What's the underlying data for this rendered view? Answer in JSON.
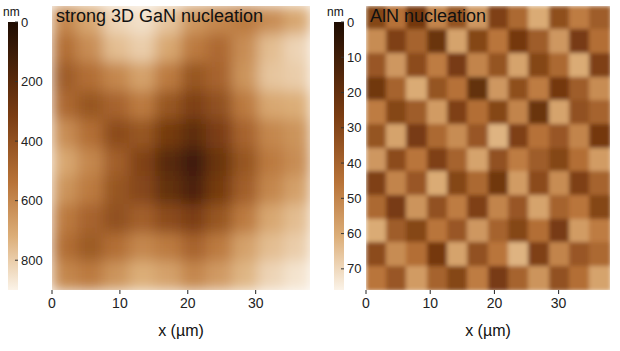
{
  "chart_data": [
    {
      "type": "heatmap",
      "title": "strong 3D GaN nucleation",
      "x_label": "x (µm)",
      "xlim": [
        0,
        38
      ],
      "xticks": [
        0,
        10,
        20,
        30
      ],
      "tick_labels": "x",
      "colorbar_label": "nm",
      "colorbar_range": [
        0,
        900
      ],
      "colorbar_ticks": [
        0,
        200,
        400,
        600,
        800
      ],
      "cells": [
        [
          600,
          700,
          820,
          850,
          780,
          650,
          600,
          560,
          620,
          700
        ],
        [
          520,
          620,
          760,
          800,
          700,
          560,
          500,
          620,
          760,
          820
        ],
        [
          450,
          520,
          600,
          680,
          560,
          420,
          480,
          640,
          780,
          800
        ],
        [
          500,
          420,
          480,
          560,
          420,
          330,
          400,
          560,
          700,
          720
        ],
        [
          620,
          520,
          380,
          420,
          300,
          220,
          320,
          480,
          600,
          640
        ],
        [
          700,
          600,
          460,
          340,
          200,
          120,
          260,
          420,
          560,
          620
        ],
        [
          640,
          560,
          420,
          360,
          240,
          160,
          300,
          460,
          600,
          680
        ],
        [
          560,
          480,
          400,
          460,
          380,
          320,
          420,
          560,
          700,
          760
        ],
        [
          520,
          440,
          520,
          600,
          560,
          480,
          560,
          680,
          760,
          800
        ],
        [
          600,
          560,
          640,
          720,
          680,
          600,
          660,
          740,
          820,
          860
        ]
      ]
    },
    {
      "type": "heatmap",
      "title": "AlN nucleation",
      "x_label": "x (µm)",
      "xlim": [
        0,
        38
      ],
      "xticks": [
        0,
        10,
        20,
        30
      ],
      "tick_labels": "x",
      "colorbar_label": "nm",
      "colorbar_range": [
        0,
        76
      ],
      "colorbar_ticks": [
        0,
        10,
        20,
        30,
        40,
        50,
        60,
        70
      ],
      "cells": [
        [
          30,
          45,
          25,
          50,
          35,
          55,
          28,
          42,
          60,
          33,
          48,
          38
        ],
        [
          52,
          28,
          40,
          22,
          58,
          30,
          46,
          25,
          38,
          55,
          26,
          44
        ],
        [
          36,
          55,
          32,
          48,
          26,
          50,
          35,
          58,
          30,
          42,
          60,
          28
        ],
        [
          24,
          40,
          60,
          35,
          45,
          20,
          55,
          33,
          48,
          25,
          38,
          52
        ],
        [
          48,
          30,
          38,
          56,
          28,
          44,
          30,
          50,
          22,
          58,
          34,
          40
        ],
        [
          35,
          58,
          26,
          42,
          52,
          36,
          62,
          28,
          45,
          36,
          50,
          25
        ],
        [
          55,
          32,
          46,
          28,
          40,
          58,
          34,
          48,
          38,
          30,
          44,
          56
        ],
        [
          28,
          50,
          36,
          60,
          30,
          42,
          24,
          56,
          32,
          52,
          28,
          40
        ],
        [
          42,
          26,
          54,
          34,
          48,
          28,
          50,
          36,
          58,
          40,
          46,
          30
        ],
        [
          60,
          38,
          30,
          46,
          36,
          55,
          40,
          30,
          44,
          26,
          56,
          48
        ],
        [
          32,
          52,
          44,
          25,
          58,
          34,
          46,
          62,
          28,
          50,
          36,
          42
        ],
        [
          46,
          36,
          56,
          40,
          30,
          48,
          26,
          40,
          54,
          34,
          44,
          58
        ]
      ]
    }
  ]
}
